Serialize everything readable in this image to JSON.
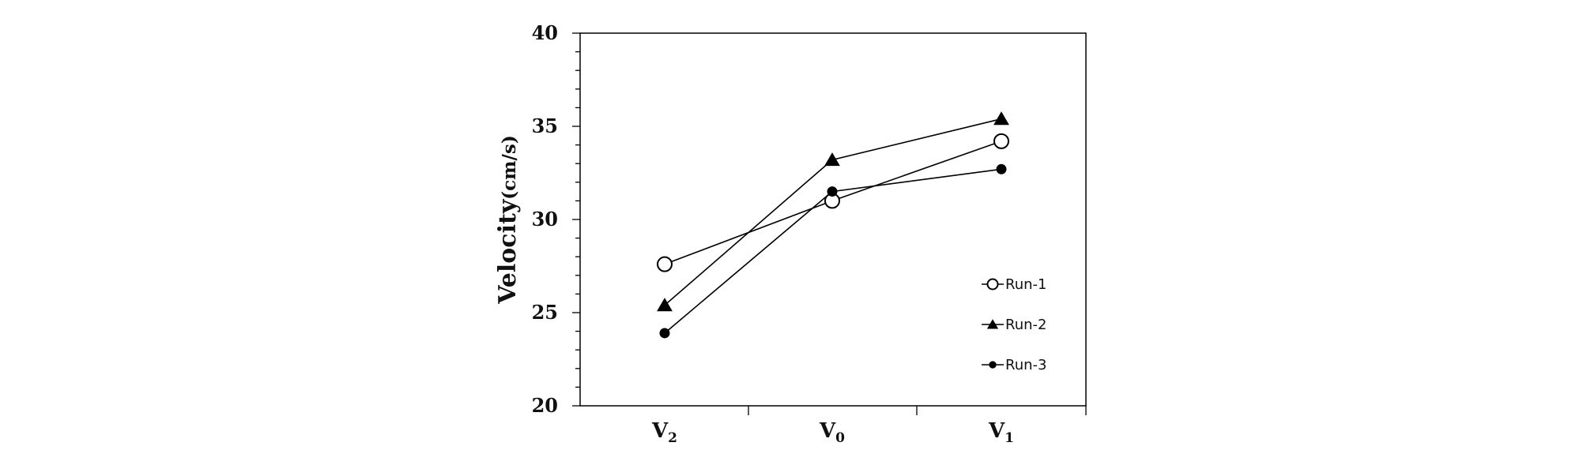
{
  "chart_data": {
    "type": "line",
    "title": "",
    "xlabel": "",
    "ylabel": "Velocity",
    "ylabel_unit": "(cm/s)",
    "categories": [
      {
        "main": "V",
        "sub": "2"
      },
      {
        "main": "V",
        "sub": "0"
      },
      {
        "main": "V",
        "sub": "1"
      }
    ],
    "ylim": [
      20,
      40
    ],
    "yticks": [
      "20",
      "25",
      "30",
      "35",
      "40"
    ],
    "grid": false,
    "legend_position": "bottom-right",
    "series": [
      {
        "name": "Run-1",
        "marker": "open-circle",
        "values": [
          27.6,
          31.0,
          34.2
        ],
        "color": "#000000"
      },
      {
        "name": "Run-2",
        "marker": "filled-triangle",
        "values": [
          25.4,
          33.2,
          35.4
        ],
        "color": "#000000"
      },
      {
        "name": "Run-3",
        "marker": "filled-circle",
        "values": [
          23.9,
          31.5,
          32.7
        ],
        "color": "#000000"
      }
    ]
  }
}
